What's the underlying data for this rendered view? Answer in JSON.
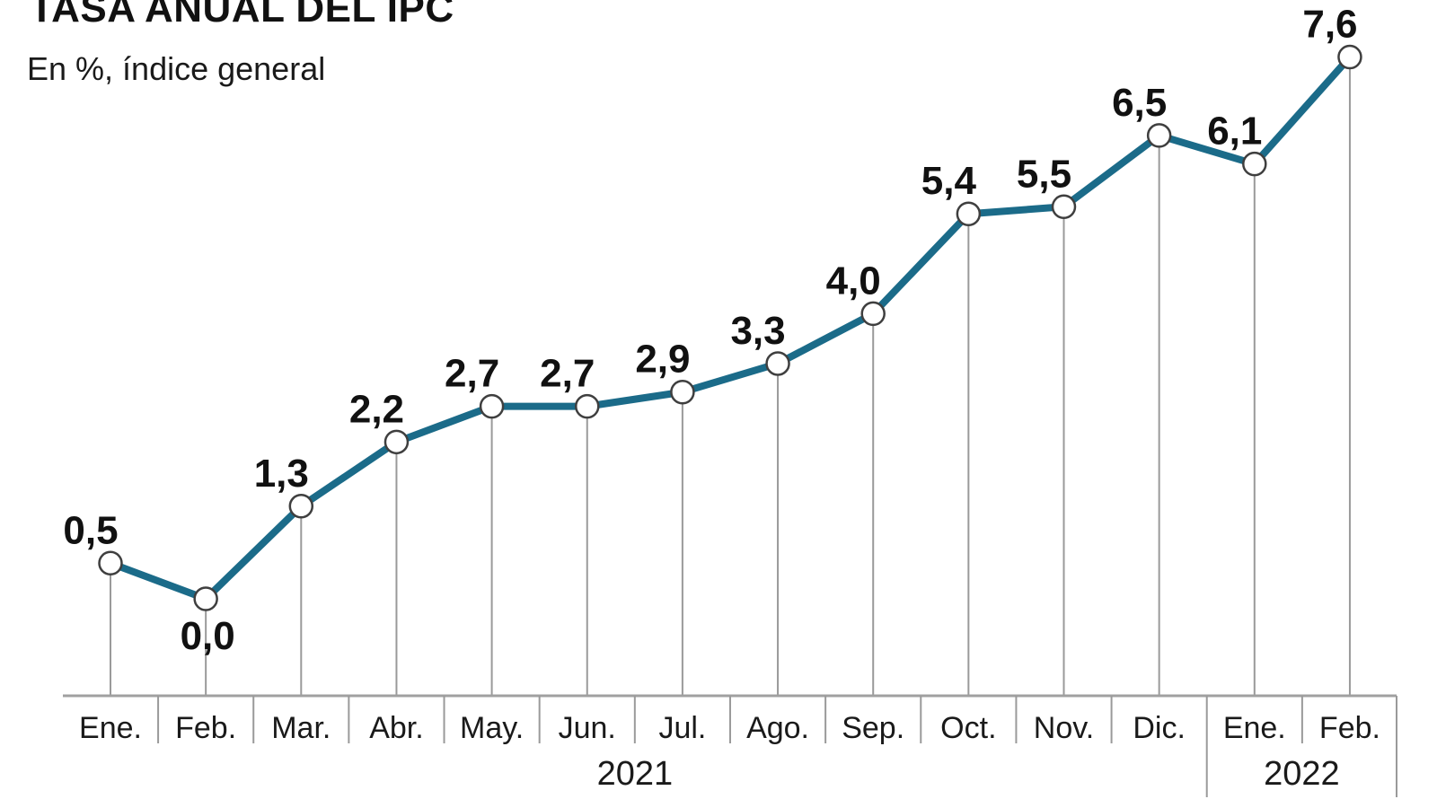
{
  "page": {
    "title": "TASA ANUAL DEL IPC",
    "subtitle": "En %, índice general"
  },
  "chart_data": {
    "type": "line",
    "title": "TASA ANUAL DEL IPC",
    "subtitle": "En %, índice general",
    "unit": "%",
    "categories": [
      "Ene.",
      "Feb.",
      "Mar.",
      "Abr.",
      "May.",
      "Jun.",
      "Jul.",
      "Ago.",
      "Sep.",
      "Oct.",
      "Nov.",
      "Dic.",
      "Ene.",
      "Feb."
    ],
    "values": [
      0.5,
      0.0,
      1.3,
      2.2,
      2.7,
      2.7,
      2.9,
      3.3,
      4.0,
      5.4,
      5.5,
      6.5,
      6.1,
      7.6
    ],
    "point_labels": [
      "0,5",
      "0,0",
      "1,3",
      "2,2",
      "2,7",
      "2,7",
      "2,9",
      "3,3",
      "4,0",
      "5,4",
      "5,5",
      "6,5",
      "6,1",
      "7,6"
    ],
    "label_position": [
      "above",
      "below",
      "above",
      "above",
      "above",
      "above",
      "above",
      "above",
      "above",
      "above",
      "above",
      "above",
      "above",
      "above"
    ],
    "year_groups": [
      {
        "label": "2021",
        "from": 0,
        "to": 11
      },
      {
        "label": "2022",
        "from": 12,
        "to": 13
      }
    ],
    "ylim": [
      0,
      8
    ],
    "grid": false,
    "legend": false,
    "xaxis_side": "bottom",
    "colors": {
      "line": "#1b6b89",
      "marker_fill": "#ffffff",
      "marker_stroke": "#3f3f3f",
      "axis": "#a0a0a0",
      "dropline": "#9a9a9a",
      "tick": "#9a9a9a",
      "text": "#1a1a1a",
      "value_text": "#111111"
    }
  }
}
